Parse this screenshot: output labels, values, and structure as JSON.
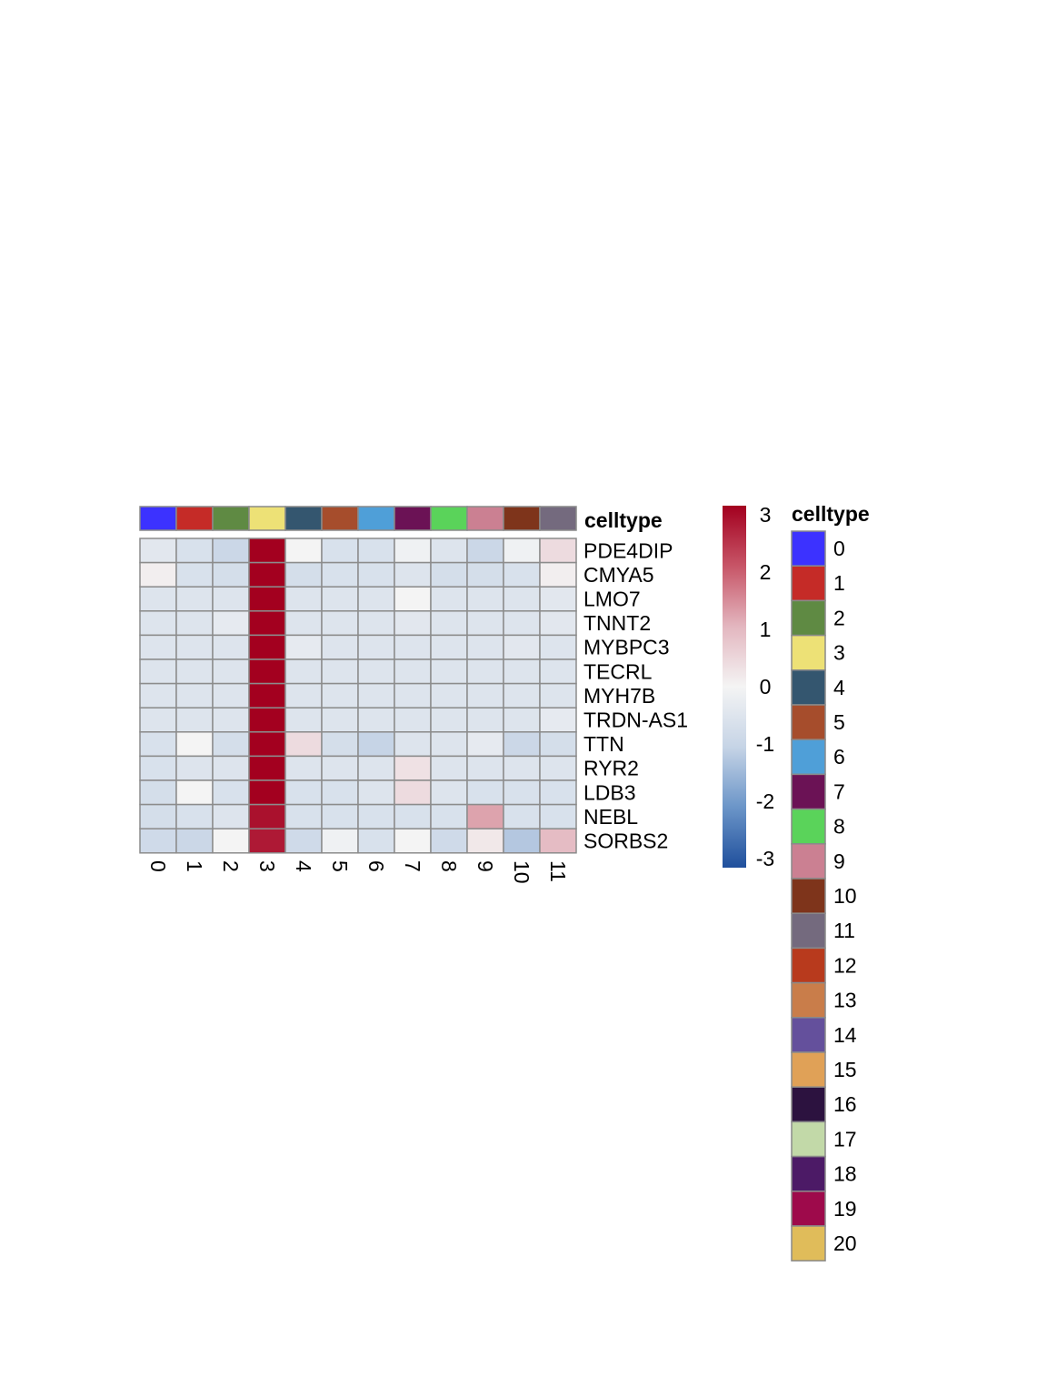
{
  "chart_data": {
    "type": "heatmap",
    "columns": [
      "0",
      "1",
      "2",
      "3",
      "4",
      "5",
      "6",
      "7",
      "8",
      "9",
      "10",
      "11"
    ],
    "rows": [
      "PDE4DIP",
      "CMYA5",
      "LMO7",
      "TNNT2",
      "MYBPC3",
      "TECRL",
      "MYH7B",
      "TRDN-AS1",
      "TTN",
      "RYR2",
      "LDB3",
      "NEBL",
      "SORBS2"
    ],
    "values": [
      [
        -0.4,
        -0.6,
        -0.9,
        3.0,
        0.0,
        -0.6,
        -0.6,
        -0.1,
        -0.5,
        -0.9,
        -0.1,
        0.4
      ],
      [
        0.1,
        -0.6,
        -0.7,
        3.0,
        -0.7,
        -0.6,
        -0.6,
        -0.5,
        -0.7,
        -0.7,
        -0.6,
        0.1
      ],
      [
        -0.5,
        -0.5,
        -0.5,
        3.0,
        -0.5,
        -0.5,
        -0.5,
        0.0,
        -0.5,
        -0.5,
        -0.5,
        -0.4
      ],
      [
        -0.5,
        -0.5,
        -0.3,
        3.0,
        -0.5,
        -0.5,
        -0.5,
        -0.4,
        -0.5,
        -0.5,
        -0.5,
        -0.4
      ],
      [
        -0.5,
        -0.5,
        -0.5,
        3.0,
        -0.3,
        -0.5,
        -0.5,
        -0.5,
        -0.5,
        -0.5,
        -0.4,
        -0.5
      ],
      [
        -0.5,
        -0.5,
        -0.5,
        3.0,
        -0.5,
        -0.5,
        -0.5,
        -0.5,
        -0.5,
        -0.5,
        -0.5,
        -0.5
      ],
      [
        -0.5,
        -0.5,
        -0.5,
        3.0,
        -0.5,
        -0.5,
        -0.5,
        -0.5,
        -0.5,
        -0.5,
        -0.5,
        -0.5
      ],
      [
        -0.5,
        -0.5,
        -0.5,
        3.0,
        -0.5,
        -0.5,
        -0.5,
        -0.5,
        -0.5,
        -0.5,
        -0.5,
        -0.3
      ],
      [
        -0.6,
        0.0,
        -0.7,
        3.0,
        0.4,
        -0.7,
        -1.0,
        -0.5,
        -0.5,
        -0.3,
        -0.9,
        -0.7
      ],
      [
        -0.6,
        -0.5,
        -0.5,
        3.0,
        -0.5,
        -0.5,
        -0.5,
        0.3,
        -0.5,
        -0.5,
        -0.5,
        -0.5
      ],
      [
        -0.7,
        0.0,
        -0.6,
        3.0,
        -0.6,
        -0.6,
        -0.5,
        0.4,
        -0.5,
        -0.6,
        -0.6,
        -0.6
      ],
      [
        -0.7,
        -0.6,
        -0.5,
        2.8,
        -0.6,
        -0.6,
        -0.6,
        -0.6,
        -0.6,
        1.2,
        -0.6,
        -0.6
      ],
      [
        -0.8,
        -0.9,
        0.0,
        2.7,
        -0.8,
        -0.1,
        -0.6,
        0.0,
        -0.8,
        0.2,
        -1.2,
        0.9
      ]
    ],
    "color_scale": {
      "min": -3,
      "max": 3,
      "ticks": [
        3,
        2,
        1,
        0,
        -1,
        -2,
        -3
      ],
      "stops": [
        "#1f4f9c",
        "#6b95c8",
        "#c6d4e6",
        "#f4f4f4",
        "#e3b6bf",
        "#c75567",
        "#a3001f"
      ]
    },
    "annotation": {
      "title": "celltype",
      "legend_title": "celltype",
      "levels": [
        "0",
        "1",
        "2",
        "3",
        "4",
        "5",
        "6",
        "7",
        "8",
        "9",
        "10",
        "11",
        "12",
        "13",
        "14",
        "15",
        "16",
        "17",
        "18",
        "19",
        "20"
      ],
      "colors": [
        "#3c32ff",
        "#c52b27",
        "#5f8a43",
        "#ede176",
        "#34566f",
        "#a64d2c",
        "#4f9fd8",
        "#6b1255",
        "#5ad35a",
        "#cb8092",
        "#7e341b",
        "#746a7e",
        "#b83a1d",
        "#c97d4a",
        "#64509c",
        "#e0a157",
        "#2c123f",
        "#c2d9a8",
        "#4c1a66",
        "#9e0a4b",
        "#e0bc5a"
      ]
    }
  }
}
